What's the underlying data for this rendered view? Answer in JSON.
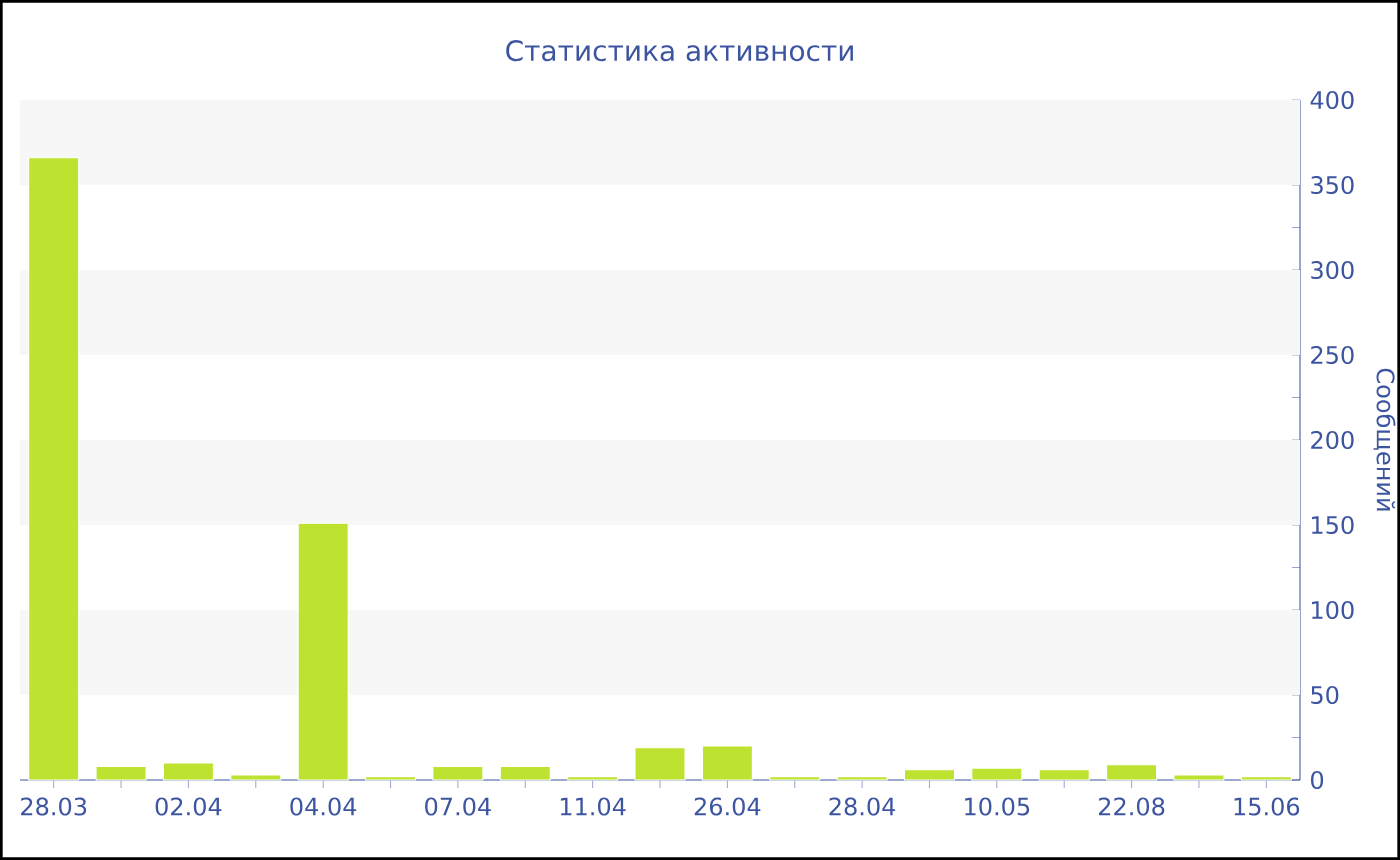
{
  "chart_data": {
    "type": "bar",
    "title": "Статистика активности",
    "ylabel": "Сообщений",
    "categories": [
      "28.03",
      null,
      "02.04",
      null,
      "04.04",
      null,
      "07.04",
      null,
      "11.04",
      null,
      "26.04",
      null,
      "28.04",
      null,
      "10.05",
      null,
      "22.08",
      null,
      "15.06"
    ],
    "values": [
      366,
      8,
      10,
      3,
      151,
      2,
      8,
      8,
      2,
      19,
      20,
      2,
      2,
      6,
      7,
      6,
      9,
      3,
      2
    ],
    "color": "#bde22f",
    "ylim": [
      0,
      400
    ],
    "yticks": [
      0,
      {
        "value": 25,
        "label": null
      },
      50,
      {
        "value": 75,
        "label": null
      },
      100,
      {
        "value": 125,
        "label": null
      },
      150,
      {
        "value": 175,
        "label": null
      },
      200,
      {
        "value": 225,
        "label": null
      },
      250,
      {
        "value": 275,
        "label": null
      },
      300,
      {
        "value": 325,
        "label": null
      },
      350,
      {
        "value": 375,
        "label": null
      },
      400
    ],
    "bands": [
      {
        "axis": "y",
        "from": 50,
        "to": 100,
        "color": "#f7f7f7"
      },
      {
        "axis": "y",
        "from": 150,
        "to": 200,
        "color": "#f7f7f7"
      },
      {
        "axis": "y",
        "from": 250,
        "to": 300,
        "color": "#f7f7f7"
      },
      {
        "axis": "y",
        "from": 350,
        "to": 400,
        "color": "#f7f7f7"
      }
    ]
  }
}
